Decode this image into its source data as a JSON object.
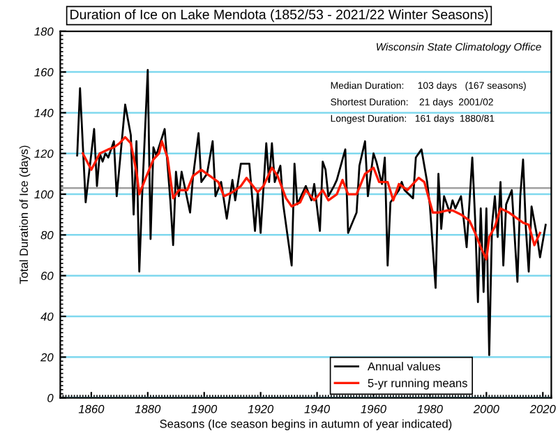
{
  "chart_data": {
    "type": "line",
    "title": "Duration of Ice on Lake Mendota (1852/53 - 2021/22 Winter Seasons)",
    "xlabel": "Seasons (Ice season begins in autumn of year indicated)",
    "ylabel": "Total Duration of Ice (days)",
    "annotations": [
      "Wisconsin State Climatology Office",
      "Median Duration:     103 days   (167 seasons)",
      "Shortest Duration:    21 days  2001/02",
      "Longest Duration:   161 days  1880/81"
    ],
    "series": [
      {
        "name": "Annual values",
        "color": "#000000",
        "x": [
          1855,
          1856,
          1858,
          1861,
          1862,
          1863,
          1864,
          1865,
          1866,
          1868,
          1869,
          1872,
          1874,
          1875,
          1876,
          1877,
          1878,
          1880,
          1881,
          1882,
          1883,
          1886,
          1888,
          1889,
          1890,
          1891,
          1892,
          1895,
          1896,
          1898,
          1899,
          1901,
          1903,
          1904,
          1906,
          1908,
          1910,
          1911,
          1913,
          1916,
          1918,
          1919,
          1920,
          1922,
          1923,
          1924,
          1925,
          1927,
          1928,
          1931,
          1932,
          1933,
          1935,
          1936,
          1938,
          1939,
          1941,
          1942,
          1943,
          1944,
          1946,
          1947,
          1950,
          1951,
          1954,
          1955,
          1957,
          1958,
          1960,
          1961,
          1963,
          1964,
          1965,
          1966,
          1969,
          1970,
          1971,
          1974,
          1975,
          1977,
          1979,
          1980,
          1982,
          1983,
          1984,
          1985,
          1987,
          1988,
          1989,
          1991,
          1992,
          1993,
          1995,
          1996,
          1997,
          1998,
          1999,
          2000,
          2001,
          2002,
          2003,
          2004,
          2005,
          2006,
          2007,
          2009,
          2011,
          2012,
          2013,
          2014,
          2015,
          2016,
          2018,
          2019,
          2021
        ],
        "values": [
          119,
          152,
          96,
          132,
          104,
          120,
          116,
          120,
          118,
          126,
          99,
          144,
          129,
          90,
          126,
          62,
          99,
          161,
          78,
          123,
          119,
          132,
          97,
          75,
          111,
          99,
          111,
          91,
          108,
          130,
          106,
          110,
          126,
          99,
          106,
          88,
          107,
          97,
          115,
          115,
          82,
          101,
          81,
          125,
          106,
          125,
          106,
          114,
          95,
          65,
          115,
          95,
          101,
          104,
          97,
          105,
          82,
          116,
          112,
          99,
          104,
          107,
          122,
          81,
          91,
          114,
          126,
          99,
          120,
          116,
          105,
          118,
          65,
          96,
          102,
          106,
          102,
          98,
          118,
          122,
          106,
          94,
          54,
          110,
          83,
          99,
          91,
          97,
          93,
          99,
          87,
          74,
          118,
          88,
          47,
          93,
          52,
          93,
          21,
          85,
          99,
          79,
          106,
          65,
          95,
          102,
          57,
          99,
          117,
          83,
          62,
          94,
          79,
          69,
          85
        ]
      },
      {
        "name": "5-yr running means",
        "color": "#ff1a00",
        "x": [
          1857,
          1860,
          1863,
          1866,
          1868,
          1870,
          1872,
          1874,
          1876,
          1877,
          1879,
          1882,
          1884,
          1885,
          1887,
          1889,
          1891,
          1894,
          1896,
          1899,
          1902,
          1905,
          1907,
          1910,
          1913,
          1915,
          1919,
          1921,
          1924,
          1926,
          1929,
          1931,
          1934,
          1936,
          1939,
          1942,
          1944,
          1947,
          1949,
          1951,
          1954,
          1957,
          1960,
          1962,
          1965,
          1967,
          1969,
          1972,
          1976,
          1978,
          1981,
          1983,
          1986,
          1988,
          1991,
          1994,
          1996,
          1998,
          2000,
          2001,
          2003,
          2005,
          2008,
          2010,
          2013,
          2015,
          2017,
          2019
        ],
        "values": [
          120,
          112,
          120,
          122,
          123,
          125,
          128,
          125,
          111,
          100,
          107,
          117,
          120,
          126,
          118,
          98,
          102,
          102,
          109,
          112,
          109,
          106,
          99,
          101,
          104,
          108,
          101,
          104,
          113,
          109,
          98,
          94,
          96,
          102,
          97,
          102,
          97,
          100,
          107,
          100,
          100,
          110,
          113,
          106,
          106,
          97,
          105,
          102,
          108,
          106,
          91,
          91,
          92,
          92,
          90,
          87,
          81,
          74,
          68,
          79,
          84,
          93,
          91,
          89,
          86,
          85,
          75,
          81
        ]
      }
    ],
    "xlim": [
      1849,
      2023
    ],
    "xticks": [
      1860,
      1880,
      1900,
      1920,
      1940,
      1960,
      1980,
      2000,
      2020
    ],
    "ylim": [
      0,
      180
    ],
    "yticks": [
      0,
      20,
      40,
      60,
      80,
      100,
      120,
      140,
      160,
      180
    ],
    "ref_lines": [
      {
        "axis": "y",
        "value": 103,
        "color": "#a0a0a0"
      }
    ],
    "grid": "y",
    "legend": "bottom right",
    "line_style": "solid",
    "marker": "none"
  }
}
